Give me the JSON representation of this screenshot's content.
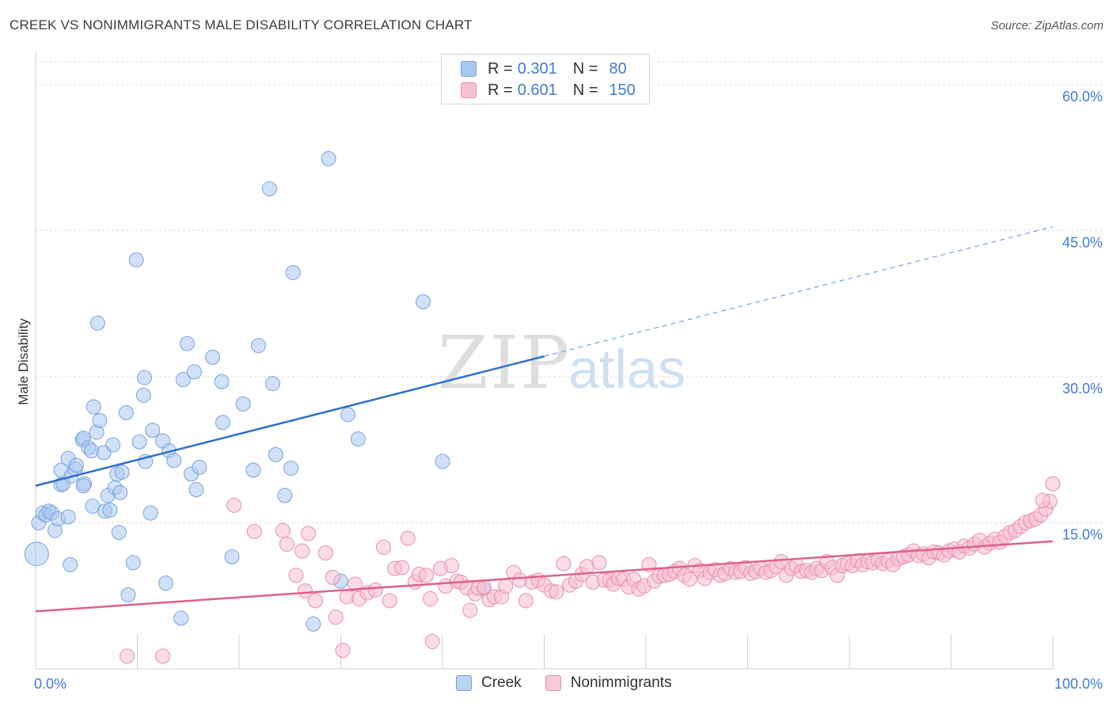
{
  "title": "CREEK VS NONIMMIGRANTS MALE DISABILITY CORRELATION CHART",
  "source": "Source: ZipAtlas.com",
  "watermark": {
    "zip": "ZIP",
    "atlas": "atlas"
  },
  "legend": {
    "rows": [
      {
        "r_label": "R =",
        "r_value": "0.301",
        "n_label": "N =",
        "n_value": "80",
        "color": "#a9c8f0",
        "border": "#7ba3dc"
      },
      {
        "r_label": "R =",
        "r_value": "0.601",
        "n_label": "N =",
        "n_value": "150",
        "color": "#f7c0d2",
        "border": "#e88fab"
      }
    ]
  },
  "bottom_legend": [
    {
      "label": "Creek",
      "color": "#b9d3f3",
      "border": "#7ba3dc"
    },
    {
      "label": "Nonimmigrants",
      "color": "#f8c9d8",
      "border": "#e88fab"
    }
  ],
  "chart_data": {
    "type": "scatter",
    "title": "CREEK VS NONIMMIGRANTS MALE DISABILITY CORRELATION CHART",
    "xlabel": "",
    "ylabel": "Male Disability",
    "xlim": [
      0,
      100
    ],
    "ylim": [
      0,
      63
    ],
    "x_tick_labels": {
      "left": "0.0%",
      "right": "100.0%"
    },
    "y_ticks": [
      15,
      30,
      45,
      60
    ],
    "y_tick_labels": [
      "15.0%",
      "30.0%",
      "45.0%",
      "60.0%"
    ],
    "grid": true,
    "legend_position": "top-center",
    "colors": {
      "creek": "#2f6fce",
      "nonimmigrants": "#e0608c",
      "tick_text": "#3f7bd6"
    },
    "series": [
      {
        "name": "Creek",
        "r": 0.301,
        "n": 80,
        "trend": {
          "x0": 0,
          "y0": 18.8,
          "x1": 50,
          "y1": 32.1,
          "dashed_to_x": 100,
          "dashed_to_y": 45.4
        },
        "points": [
          [
            0.1,
            11.8
          ],
          [
            0.3,
            15.0
          ],
          [
            0.7,
            16.0
          ],
          [
            1.0,
            15.8
          ],
          [
            1.3,
            16.2
          ],
          [
            1.6,
            16.0
          ],
          [
            1.9,
            14.2
          ],
          [
            2.2,
            15.4
          ],
          [
            2.5,
            18.9
          ],
          [
            2.7,
            19.0
          ],
          [
            2.5,
            20.4
          ],
          [
            3.2,
            15.6
          ],
          [
            3.2,
            21.6
          ],
          [
            3.5,
            19.8
          ],
          [
            3.4,
            10.7
          ],
          [
            3.9,
            20.5
          ],
          [
            4.0,
            20.9
          ],
          [
            4.6,
            23.5
          ],
          [
            4.7,
            23.7
          ],
          [
            4.8,
            19.0
          ],
          [
            4.7,
            18.8
          ],
          [
            5.2,
            22.7
          ],
          [
            5.5,
            22.4
          ],
          [
            5.6,
            16.7
          ],
          [
            5.7,
            26.9
          ],
          [
            6.0,
            24.3
          ],
          [
            6.1,
            35.5
          ],
          [
            6.3,
            25.5
          ],
          [
            6.7,
            22.2
          ],
          [
            6.8,
            16.2
          ],
          [
            7.1,
            17.8
          ],
          [
            7.3,
            16.3
          ],
          [
            7.6,
            23.0
          ],
          [
            7.8,
            18.6
          ],
          [
            8.0,
            20.0
          ],
          [
            8.2,
            14.0
          ],
          [
            8.3,
            18.1
          ],
          [
            8.5,
            20.2
          ],
          [
            8.9,
            26.3
          ],
          [
            9.1,
            7.6
          ],
          [
            9.6,
            10.9
          ],
          [
            9.9,
            42.0
          ],
          [
            10.2,
            23.3
          ],
          [
            10.6,
            28.1
          ],
          [
            10.7,
            29.9
          ],
          [
            10.8,
            21.3
          ],
          [
            11.3,
            16.0
          ],
          [
            11.5,
            24.5
          ],
          [
            12.5,
            23.4
          ],
          [
            12.8,
            8.8
          ],
          [
            13.1,
            22.4
          ],
          [
            13.6,
            21.4
          ],
          [
            14.3,
            5.2
          ],
          [
            14.5,
            29.7
          ],
          [
            14.9,
            33.4
          ],
          [
            15.3,
            20.0
          ],
          [
            15.6,
            30.5
          ],
          [
            15.8,
            18.4
          ],
          [
            16.1,
            20.7
          ],
          [
            17.4,
            32.0
          ],
          [
            18.3,
            29.5
          ],
          [
            18.4,
            25.3
          ],
          [
            19.3,
            11.5
          ],
          [
            20.4,
            27.2
          ],
          [
            21.4,
            20.4
          ],
          [
            21.9,
            33.2
          ],
          [
            23.0,
            49.3
          ],
          [
            23.3,
            29.3
          ],
          [
            23.6,
            22.0
          ],
          [
            24.5,
            17.8
          ],
          [
            25.1,
            20.6
          ],
          [
            25.3,
            40.7
          ],
          [
            27.3,
            4.6
          ],
          [
            28.8,
            52.4
          ],
          [
            30.7,
            26.1
          ],
          [
            31.7,
            23.6
          ],
          [
            38.1,
            37.7
          ],
          [
            40.0,
            21.3
          ],
          [
            44.0,
            8.2
          ],
          [
            30.0,
            9.0
          ]
        ]
      },
      {
        "name": "Nonimmigrants",
        "r": 0.601,
        "n": 150,
        "trend": {
          "x0": 0,
          "y0": 5.9,
          "x1": 100,
          "y1": 13.1
        },
        "points": [
          [
            9.0,
            1.3
          ],
          [
            12.5,
            1.3
          ],
          [
            19.5,
            16.8
          ],
          [
            21.5,
            14.1
          ],
          [
            24.3,
            14.2
          ],
          [
            24.7,
            12.8
          ],
          [
            25.6,
            9.6
          ],
          [
            26.2,
            12.1
          ],
          [
            26.5,
            8.0
          ],
          [
            26.8,
            13.9
          ],
          [
            27.5,
            7.0
          ],
          [
            28.5,
            11.9
          ],
          [
            29.2,
            9.4
          ],
          [
            29.5,
            5.3
          ],
          [
            30.2,
            1.9
          ],
          [
            30.6,
            7.4
          ],
          [
            31.4,
            8.7
          ],
          [
            31.8,
            7.2
          ],
          [
            32.6,
            7.8
          ],
          [
            33.4,
            8.1
          ],
          [
            34.2,
            12.5
          ],
          [
            34.8,
            7.0
          ],
          [
            35.3,
            10.3
          ],
          [
            36.0,
            10.4
          ],
          [
            36.6,
            13.4
          ],
          [
            37.3,
            8.9
          ],
          [
            37.7,
            9.7
          ],
          [
            38.4,
            9.6
          ],
          [
            38.8,
            7.2
          ],
          [
            39.0,
            2.8
          ],
          [
            39.8,
            10.3
          ],
          [
            40.3,
            8.5
          ],
          [
            40.9,
            10.6
          ],
          [
            41.4,
            9.0
          ],
          [
            41.8,
            8.9
          ],
          [
            42.4,
            8.3
          ],
          [
            42.7,
            6.0
          ],
          [
            43.2,
            7.7
          ],
          [
            43.5,
            8.3
          ],
          [
            44.1,
            8.4
          ],
          [
            44.6,
            7.1
          ],
          [
            45.1,
            7.4
          ],
          [
            45.8,
            7.4
          ],
          [
            46.2,
            8.5
          ],
          [
            47.0,
            9.9
          ],
          [
            47.6,
            9.1
          ],
          [
            48.2,
            7.0
          ],
          [
            48.8,
            8.9
          ],
          [
            49.4,
            9.1
          ],
          [
            50.0,
            8.6
          ],
          [
            50.7,
            8.0
          ],
          [
            51.2,
            7.9
          ],
          [
            51.9,
            10.8
          ],
          [
            52.5,
            8.6
          ],
          [
            53.1,
            9.0
          ],
          [
            53.7,
            9.7
          ],
          [
            54.2,
            10.5
          ],
          [
            54.8,
            8.9
          ],
          [
            55.4,
            10.9
          ],
          [
            55.9,
            9.1
          ],
          [
            56.4,
            9.1
          ],
          [
            56.8,
            8.7
          ],
          [
            57.3,
            9.3
          ],
          [
            57.8,
            9.2
          ],
          [
            58.3,
            8.4
          ],
          [
            58.8,
            9.2
          ],
          [
            59.3,
            8.2
          ],
          [
            59.8,
            8.5
          ],
          [
            60.3,
            10.7
          ],
          [
            60.8,
            9.0
          ],
          [
            61.3,
            9.5
          ],
          [
            61.8,
            9.6
          ],
          [
            62.3,
            9.7
          ],
          [
            62.8,
            10.0
          ],
          [
            63.3,
            10.3
          ],
          [
            63.8,
            9.6
          ],
          [
            64.3,
            9.2
          ],
          [
            64.8,
            10.6
          ],
          [
            65.3,
            10.1
          ],
          [
            65.8,
            9.3
          ],
          [
            66.3,
            9.9
          ],
          [
            66.8,
            10.2
          ],
          [
            67.3,
            9.6
          ],
          [
            67.8,
            9.8
          ],
          [
            68.3,
            10.3
          ],
          [
            68.8,
            9.9
          ],
          [
            69.3,
            10.0
          ],
          [
            69.8,
            10.4
          ],
          [
            70.3,
            9.8
          ],
          [
            70.8,
            10.0
          ],
          [
            71.3,
            10.3
          ],
          [
            71.8,
            9.9
          ],
          [
            72.3,
            10.1
          ],
          [
            72.8,
            10.5
          ],
          [
            73.3,
            11.0
          ],
          [
            73.8,
            9.6
          ],
          [
            74.3,
            10.3
          ],
          [
            74.8,
            10.6
          ],
          [
            75.3,
            10.0
          ],
          [
            75.8,
            10.1
          ],
          [
            76.3,
            9.9
          ],
          [
            76.8,
            10.3
          ],
          [
            77.3,
            10.1
          ],
          [
            77.8,
            11.0
          ],
          [
            78.3,
            10.4
          ],
          [
            78.8,
            9.6
          ],
          [
            79.3,
            10.6
          ],
          [
            79.8,
            10.8
          ],
          [
            80.3,
            10.6
          ],
          [
            80.8,
            11.1
          ],
          [
            81.3,
            10.7
          ],
          [
            81.8,
            11.0
          ],
          [
            82.3,
            10.9
          ],
          [
            82.8,
            11.2
          ],
          [
            83.3,
            10.8
          ],
          [
            83.8,
            11.1
          ],
          [
            84.3,
            10.7
          ],
          [
            84.8,
            11.3
          ],
          [
            85.3,
            11.5
          ],
          [
            85.8,
            11.7
          ],
          [
            86.3,
            12.1
          ],
          [
            86.8,
            11.6
          ],
          [
            87.3,
            11.8
          ],
          [
            87.8,
            11.4
          ],
          [
            88.3,
            12.0
          ],
          [
            88.8,
            11.9
          ],
          [
            89.3,
            11.7
          ],
          [
            89.8,
            12.1
          ],
          [
            90.3,
            12.3
          ],
          [
            90.8,
            12.0
          ],
          [
            91.3,
            12.6
          ],
          [
            91.8,
            12.4
          ],
          [
            92.3,
            12.8
          ],
          [
            92.8,
            13.2
          ],
          [
            93.3,
            12.5
          ],
          [
            93.8,
            12.9
          ],
          [
            94.3,
            13.3
          ],
          [
            94.8,
            13.0
          ],
          [
            95.3,
            13.6
          ],
          [
            95.8,
            14.0
          ],
          [
            96.3,
            14.2
          ],
          [
            96.8,
            14.6
          ],
          [
            97.3,
            15.0
          ],
          [
            97.8,
            15.2
          ],
          [
            98.3,
            15.4
          ],
          [
            98.8,
            15.8
          ],
          [
            99.3,
            16.4
          ],
          [
            99.7,
            17.2
          ],
          [
            100.0,
            19.0
          ],
          [
            99.0,
            17.3
          ]
        ]
      }
    ]
  }
}
